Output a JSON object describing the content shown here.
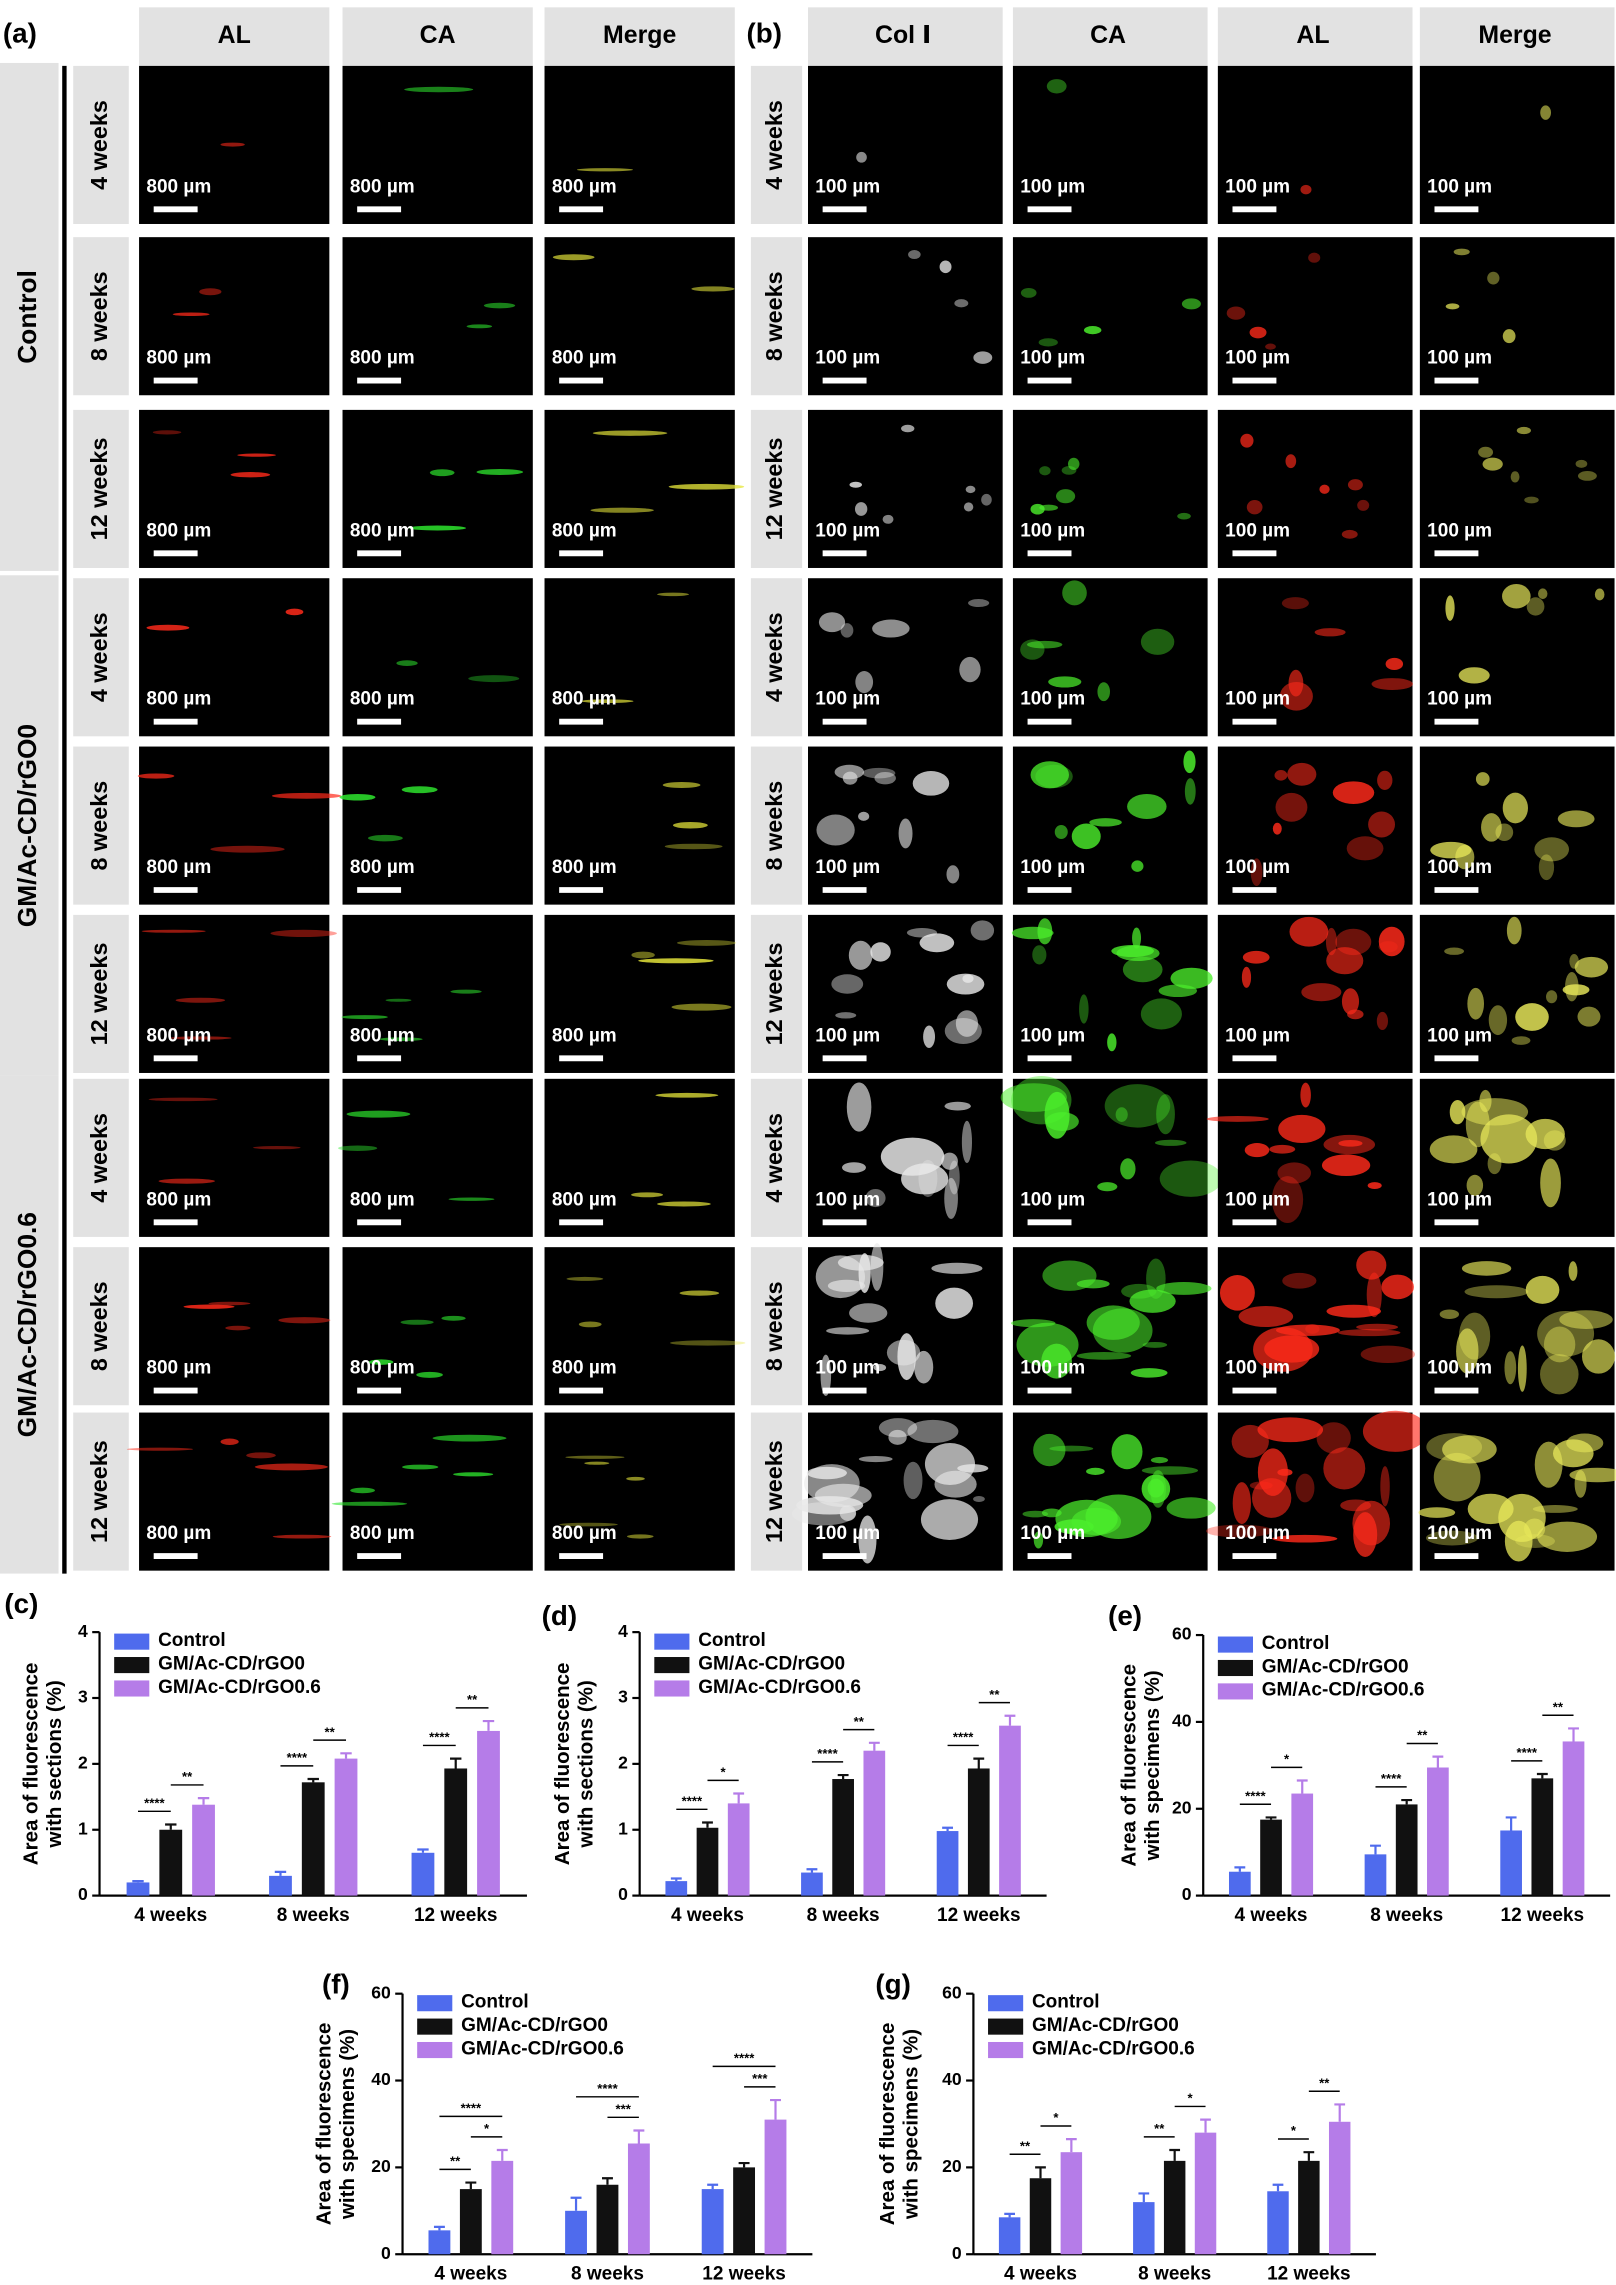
{
  "panel_a": {
    "label": "(a)",
    "columns": [
      "AL",
      "CA",
      "Merge"
    ],
    "groups": [
      "Control",
      "GM/Ac-CD/rGO0",
      "GM/Ac-CD/rGO0.6"
    ],
    "rows": [
      "4 weeks",
      "8 weeks",
      "12 weeks"
    ],
    "scale_bar": "800 µm"
  },
  "panel_b": {
    "label": "(b)",
    "columns": [
      "Col Ⅰ",
      "CA",
      "AL",
      "Merge"
    ],
    "rows": [
      "4 weeks",
      "8 weeks",
      "12 weeks"
    ],
    "scale_bar": "100 µm"
  },
  "chart_data": [
    {
      "type": "bar",
      "panel_label": "(c)",
      "ylabel": [
        "Area of fluorescence",
        "with sections (%)"
      ],
      "categories": [
        "4 weeks",
        "8 weeks",
        "12 weeks"
      ],
      "ylim": [
        0,
        4
      ],
      "yticks": [
        0,
        1,
        2,
        3,
        4
      ],
      "series": [
        {
          "name": "Control",
          "color": "#4f6bed",
          "values": [
            0.2,
            0.3,
            0.65
          ],
          "errors": [
            0.02,
            0.06,
            0.05
          ]
        },
        {
          "name": "GM/Ac-CD/rGO0",
          "color": "#111111",
          "values": [
            1.0,
            1.72,
            1.93
          ],
          "errors": [
            0.08,
            0.05,
            0.15
          ]
        },
        {
          "name": "GM/Ac-CD/rGO0.6",
          "color": "#b57ce8",
          "values": [
            1.38,
            2.08,
            2.5
          ],
          "errors": [
            0.1,
            0.08,
            0.15
          ]
        }
      ],
      "significance": [
        [
          {
            "pair": [
              0,
              1
            ],
            "label": "****"
          },
          {
            "pair": [
              1,
              2
            ],
            "label": "**"
          }
        ],
        [
          {
            "pair": [
              0,
              1
            ],
            "label": "****"
          },
          {
            "pair": [
              1,
              2
            ],
            "label": "**"
          }
        ],
        [
          {
            "pair": [
              0,
              1
            ],
            "label": "****"
          },
          {
            "pair": [
              1,
              2
            ],
            "label": "**"
          }
        ]
      ]
    },
    {
      "type": "bar",
      "panel_label": "(d)",
      "ylabel": [
        "Area of fluorescence",
        "with sections (%)"
      ],
      "categories": [
        "4 weeks",
        "8 weeks",
        "12 weeks"
      ],
      "ylim": [
        0,
        4
      ],
      "yticks": [
        0,
        1,
        2,
        3,
        4
      ],
      "series": [
        {
          "name": "Control",
          "color": "#4f6bed",
          "values": [
            0.22,
            0.35,
            0.98
          ],
          "errors": [
            0.04,
            0.05,
            0.05
          ]
        },
        {
          "name": "GM/Ac-CD/rGO0",
          "color": "#111111",
          "values": [
            1.03,
            1.77,
            1.93
          ],
          "errors": [
            0.08,
            0.06,
            0.15
          ]
        },
        {
          "name": "GM/Ac-CD/rGO0.6",
          "color": "#b57ce8",
          "values": [
            1.4,
            2.2,
            2.58
          ],
          "errors": [
            0.15,
            0.12,
            0.15
          ]
        }
      ],
      "significance": [
        [
          {
            "pair": [
              0,
              1
            ],
            "label": "****"
          },
          {
            "pair": [
              1,
              2
            ],
            "label": "*"
          }
        ],
        [
          {
            "pair": [
              0,
              1
            ],
            "label": "****"
          },
          {
            "pair": [
              1,
              2
            ],
            "label": "**"
          }
        ],
        [
          {
            "pair": [
              0,
              1
            ],
            "label": "****"
          },
          {
            "pair": [
              1,
              2
            ],
            "label": "**"
          }
        ]
      ]
    },
    {
      "type": "bar",
      "panel_label": "(e)",
      "ylabel": [
        "Area of fluorescence",
        "with  specimens (%)"
      ],
      "categories": [
        "4 weeks",
        "8 weeks",
        "12 weeks"
      ],
      "ylim": [
        0,
        60
      ],
      "yticks": [
        0,
        20,
        40,
        60
      ],
      "series": [
        {
          "name": "Control",
          "color": "#4f6bed",
          "values": [
            5.5,
            9.5,
            15
          ],
          "errors": [
            1,
            2,
            3
          ]
        },
        {
          "name": "GM/Ac-CD/rGO0",
          "color": "#111111",
          "values": [
            17.5,
            21,
            27
          ],
          "errors": [
            0.5,
            1,
            1
          ]
        },
        {
          "name": "GM/Ac-CD/rGO0.6",
          "color": "#b57ce8",
          "values": [
            23.5,
            29.5,
            35.5
          ],
          "errors": [
            3,
            2.5,
            3
          ]
        }
      ],
      "significance": [
        [
          {
            "pair": [
              0,
              1
            ],
            "label": "****"
          },
          {
            "pair": [
              1,
              2
            ],
            "label": "*"
          }
        ],
        [
          {
            "pair": [
              0,
              1
            ],
            "label": "****"
          },
          {
            "pair": [
              1,
              2
            ],
            "label": "**"
          }
        ],
        [
          {
            "pair": [
              0,
              1
            ],
            "label": "****"
          },
          {
            "pair": [
              1,
              2
            ],
            "label": "**"
          }
        ]
      ]
    },
    {
      "type": "bar",
      "panel_label": "(f)",
      "ylabel": [
        "Area of fluorescence",
        "with specimens (%)"
      ],
      "categories": [
        "4 weeks",
        "8 weeks",
        "12 weeks"
      ],
      "ylim": [
        0,
        60
      ],
      "yticks": [
        0,
        20,
        40,
        60
      ],
      "series": [
        {
          "name": "Control",
          "color": "#4f6bed",
          "values": [
            5.5,
            10,
            15
          ],
          "errors": [
            0.8,
            3,
            1
          ]
        },
        {
          "name": "GM/Ac-CD/rGO0",
          "color": "#111111",
          "values": [
            15,
            16,
            20
          ],
          "errors": [
            1.5,
            1.5,
            1
          ]
        },
        {
          "name": "GM/Ac-CD/rGO0.6",
          "color": "#b57ce8",
          "values": [
            21.5,
            25.5,
            31
          ],
          "errors": [
            2.5,
            3,
            4.5
          ]
        }
      ],
      "significance": [
        [
          {
            "pair": [
              0,
              1
            ],
            "label": "**"
          },
          {
            "pair": [
              1,
              2
            ],
            "label": "*"
          },
          {
            "pair": [
              0,
              2
            ],
            "label": "****"
          }
        ],
        [
          {
            "pair": [
              1,
              2
            ],
            "label": "***"
          },
          {
            "pair": [
              0,
              2
            ],
            "label": "****"
          }
        ],
        [
          {
            "pair": [
              1,
              2
            ],
            "label": "***"
          },
          {
            "pair": [
              0,
              2
            ],
            "label": "****"
          }
        ]
      ]
    },
    {
      "type": "bar",
      "panel_label": "(g)",
      "ylabel": [
        "Area of fluorescence",
        "with specimens (%)"
      ],
      "categories": [
        "4 weeks",
        "8 weeks",
        "12 weeks"
      ],
      "ylim": [
        0,
        60
      ],
      "yticks": [
        0,
        20,
        40,
        60
      ],
      "series": [
        {
          "name": "Control",
          "color": "#4f6bed",
          "values": [
            8.5,
            12,
            14.5
          ],
          "errors": [
            0.8,
            2,
            1.5
          ]
        },
        {
          "name": "GM/Ac-CD/rGO0",
          "color": "#111111",
          "values": [
            17.5,
            21.5,
            21.5
          ],
          "errors": [
            2.5,
            2.5,
            2
          ]
        },
        {
          "name": "GM/Ac-CD/rGO0.6",
          "color": "#b57ce8",
          "values": [
            23.5,
            28,
            30.5
          ],
          "errors": [
            3,
            3,
            4
          ]
        }
      ],
      "significance": [
        [
          {
            "pair": [
              0,
              1
            ],
            "label": "**"
          },
          {
            "pair": [
              1,
              2
            ],
            "label": "*"
          }
        ],
        [
          {
            "pair": [
              0,
              1
            ],
            "label": "**"
          },
          {
            "pair": [
              1,
              2
            ],
            "label": "*"
          }
        ],
        [
          {
            "pair": [
              0,
              1
            ],
            "label": "*"
          },
          {
            "pair": [
              1,
              2
            ],
            "label": "**"
          }
        ]
      ]
    }
  ]
}
